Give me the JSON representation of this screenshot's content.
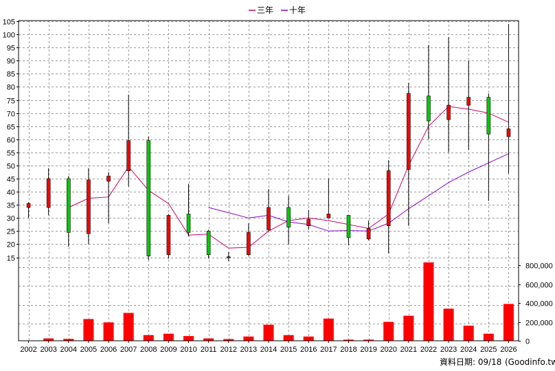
{
  "chart_data": {
    "type": "candlestick",
    "legend": [
      {
        "label": "三年",
        "color": "#cc0066"
      },
      {
        "label": "十年",
        "color": "#8800cc"
      }
    ],
    "source_label": "資料日期: 09/18",
    "source_site": "(Goodinfo.tw)",
    "price_axis": {
      "min": 15,
      "max": 105,
      "step": 5
    },
    "volume_axis": {
      "min": 0,
      "max": 800000,
      "ticks": [
        "0",
        "200,000",
        "400,000",
        "600,000",
        "800,000"
      ]
    },
    "colors": {
      "up": "#ff0000",
      "down": "#00cc00",
      "volume": "#ff0000",
      "grid": "#999999"
    },
    "years": [
      "2002",
      "2003",
      "2004",
      "2005",
      "2006",
      "2007",
      "2008",
      "2009",
      "2010",
      "2011",
      "2012",
      "2013",
      "2014",
      "2015",
      "2016",
      "2017",
      "2018",
      "2019",
      "2020",
      "2021",
      "2022",
      "2023",
      "2024",
      "2025",
      "2026"
    ],
    "candles": [
      {
        "open": 34,
        "close": 35.5,
        "high": 36,
        "low": 30
      },
      {
        "open": 34,
        "close": 45,
        "high": 49,
        "low": 31
      },
      {
        "open": 45,
        "close": 24.5,
        "high": 46,
        "low": 19
      },
      {
        "open": 24,
        "close": 44.5,
        "high": 49,
        "low": 20
      },
      {
        "open": 44,
        "close": 46,
        "high": 47.5,
        "low": 28
      },
      {
        "open": 48,
        "close": 59.5,
        "high": 77,
        "low": 42
      },
      {
        "open": 59.5,
        "close": 15.5,
        "high": 61,
        "low": 14
      },
      {
        "open": 16,
        "close": 31,
        "high": 31.5,
        "low": 14.5
      },
      {
        "open": 31.5,
        "close": 24.5,
        "high": 43,
        "low": 23
      },
      {
        "open": 25,
        "close": 16,
        "high": 25.5,
        "low": 14.5
      },
      {
        "open": 15,
        "close": 15.2,
        "high": 17,
        "low": 13.5
      },
      {
        "open": 16,
        "close": 24.5,
        "high": 28,
        "low": 15.5
      },
      {
        "open": 25.5,
        "close": 34,
        "high": 41,
        "low": 25
      },
      {
        "open": 34,
        "close": 26.5,
        "high": 38.5,
        "low": 20
      },
      {
        "open": 27,
        "close": 29.5,
        "high": 33,
        "low": 25.5
      },
      {
        "open": 30,
        "close": 31.5,
        "high": 45,
        "low": 30
      },
      {
        "open": 31,
        "close": 22.5,
        "high": 31,
        "low": 19.5
      },
      {
        "open": 22,
        "close": 26,
        "high": 29,
        "low": 21.5
      },
      {
        "open": 27,
        "close": 48,
        "high": 52,
        "low": 16.5
      },
      {
        "open": 48.5,
        "close": 77.5,
        "high": 81.5,
        "low": 27
      },
      {
        "open": 76.5,
        "close": 67,
        "high": 96,
        "low": 60
      },
      {
        "open": 67.5,
        "close": 73,
        "high": 99,
        "low": 55
      },
      {
        "open": 73,
        "close": 76,
        "high": 90,
        "low": 56
      },
      {
        "open": 76,
        "close": 62,
        "high": 77.5,
        "low": 36.5
      },
      {
        "open": 61,
        "close": 64,
        "high": 104,
        "low": 47
      }
    ],
    "series": [
      {
        "name": "三年",
        "values": [
          null,
          null,
          34,
          37.5,
          38,
          49.5,
          40.5,
          35.5,
          23.5,
          23.8,
          18.5,
          18.8,
          25,
          29,
          30,
          29,
          27.5,
          26,
          31.5,
          50,
          65,
          72.5,
          71.5,
          70,
          66.5
        ]
      },
      {
        "name": "十年",
        "values": [
          null,
          null,
          null,
          null,
          null,
          null,
          null,
          null,
          null,
          34,
          32,
          30,
          31,
          28.5,
          27.5,
          25,
          25.2,
          25,
          28,
          33.5,
          38.5,
          43.5,
          47.5,
          51,
          54.5
        ]
      }
    ],
    "volumes": [
      2000,
      25000,
      20000,
      230000,
      195000,
      295000,
      60000,
      75000,
      50000,
      25000,
      18000,
      45000,
      170000,
      60000,
      45000,
      235000,
      12000,
      12000,
      200000,
      265000,
      830000,
      340000,
      160000,
      75000,
      390000
    ]
  }
}
